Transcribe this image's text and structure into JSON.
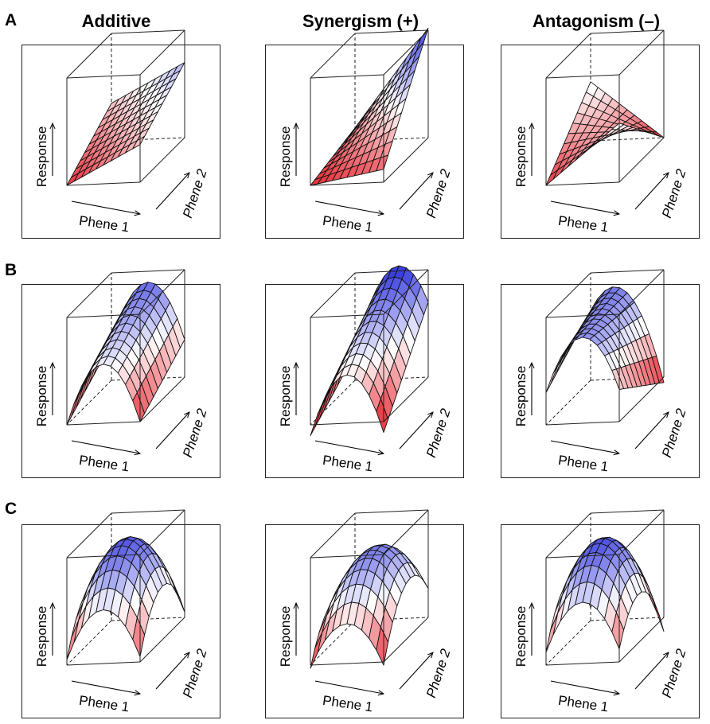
{
  "columns": [
    {
      "title": "Additive",
      "type": "additive"
    },
    {
      "title": "Synergism (+)",
      "type": "synergism"
    },
    {
      "title": "Antagonism (–)",
      "type": "antagonism"
    }
  ],
  "rows": [
    {
      "label": "A",
      "shape": "linear"
    },
    {
      "label": "B",
      "shape": "curved_one_axis"
    },
    {
      "label": "C",
      "shape": "curved_both_axes"
    }
  ],
  "axes": {
    "response": "Response",
    "phene1": "Phene 1",
    "phene2": "Phene 2"
  },
  "colors": {
    "low": "#e8303a",
    "mid": "#ffffff",
    "high": "#3b3fe0",
    "grid": "#111111",
    "frame": "#222222"
  }
}
